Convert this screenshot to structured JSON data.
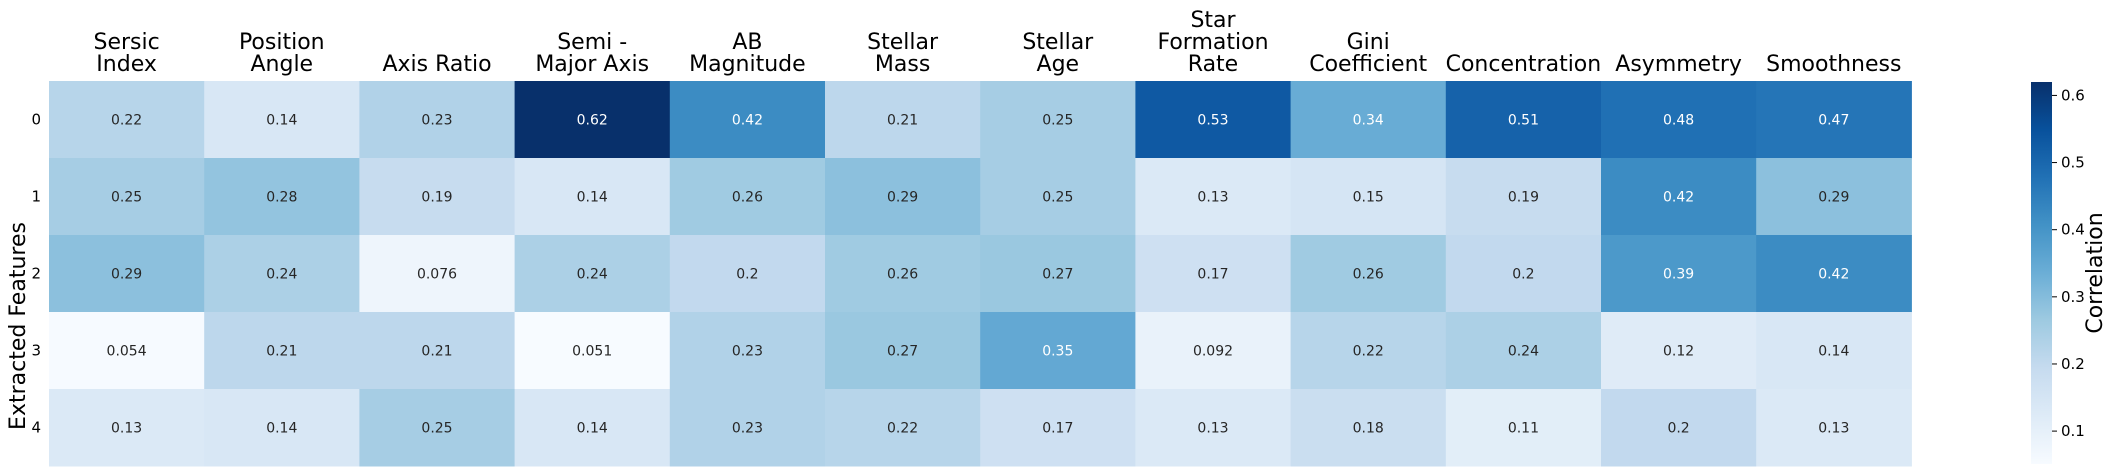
{
  "chart_data": {
    "type": "heatmap",
    "title": "",
    "xlabel": "",
    "ylabel": "Extracted Features",
    "columns": [
      [
        "Sersic",
        "Index"
      ],
      [
        "Position",
        "Angle"
      ],
      [
        "Axis Ratio"
      ],
      [
        "Semi -",
        "Major Axis"
      ],
      [
        "AB",
        "Magnitude"
      ],
      [
        "Stellar",
        "Mass"
      ],
      [
        "Stellar",
        "Age"
      ],
      [
        "Star",
        "Formation",
        "Rate"
      ],
      [
        "Gini",
        "Coefficient"
      ],
      [
        "Concentration"
      ],
      [
        "Asymmetry"
      ],
      [
        "Smoothness"
      ]
    ],
    "rows": [
      "0",
      "1",
      "2",
      "3",
      "4"
    ],
    "values": [
      [
        0.22,
        0.14,
        0.23,
        0.62,
        0.42,
        0.21,
        0.25,
        0.53,
        0.34,
        0.51,
        0.48,
        0.47
      ],
      [
        0.25,
        0.28,
        0.19,
        0.14,
        0.26,
        0.29,
        0.25,
        0.13,
        0.15,
        0.19,
        0.42,
        0.29
      ],
      [
        0.29,
        0.24,
        0.076,
        0.24,
        0.2,
        0.26,
        0.27,
        0.17,
        0.26,
        0.2,
        0.39,
        0.42
      ],
      [
        0.054,
        0.21,
        0.21,
        0.051,
        0.23,
        0.27,
        0.35,
        0.092,
        0.22,
        0.24,
        0.12,
        0.14
      ],
      [
        0.13,
        0.14,
        0.25,
        0.14,
        0.23,
        0.22,
        0.17,
        0.13,
        0.18,
        0.11,
        0.2,
        0.13
      ]
    ],
    "colormap": "Blues",
    "vmin": 0.051,
    "vmax": 0.62,
    "colorbar": {
      "label": "Correlation",
      "ticks": [
        0.1,
        0.2,
        0.3,
        0.4,
        0.5,
        0.6
      ],
      "tick_labels": [
        "0.1",
        "0.2",
        "0.3",
        "0.4",
        "0.5",
        "0.6"
      ]
    },
    "annotations": true
  }
}
